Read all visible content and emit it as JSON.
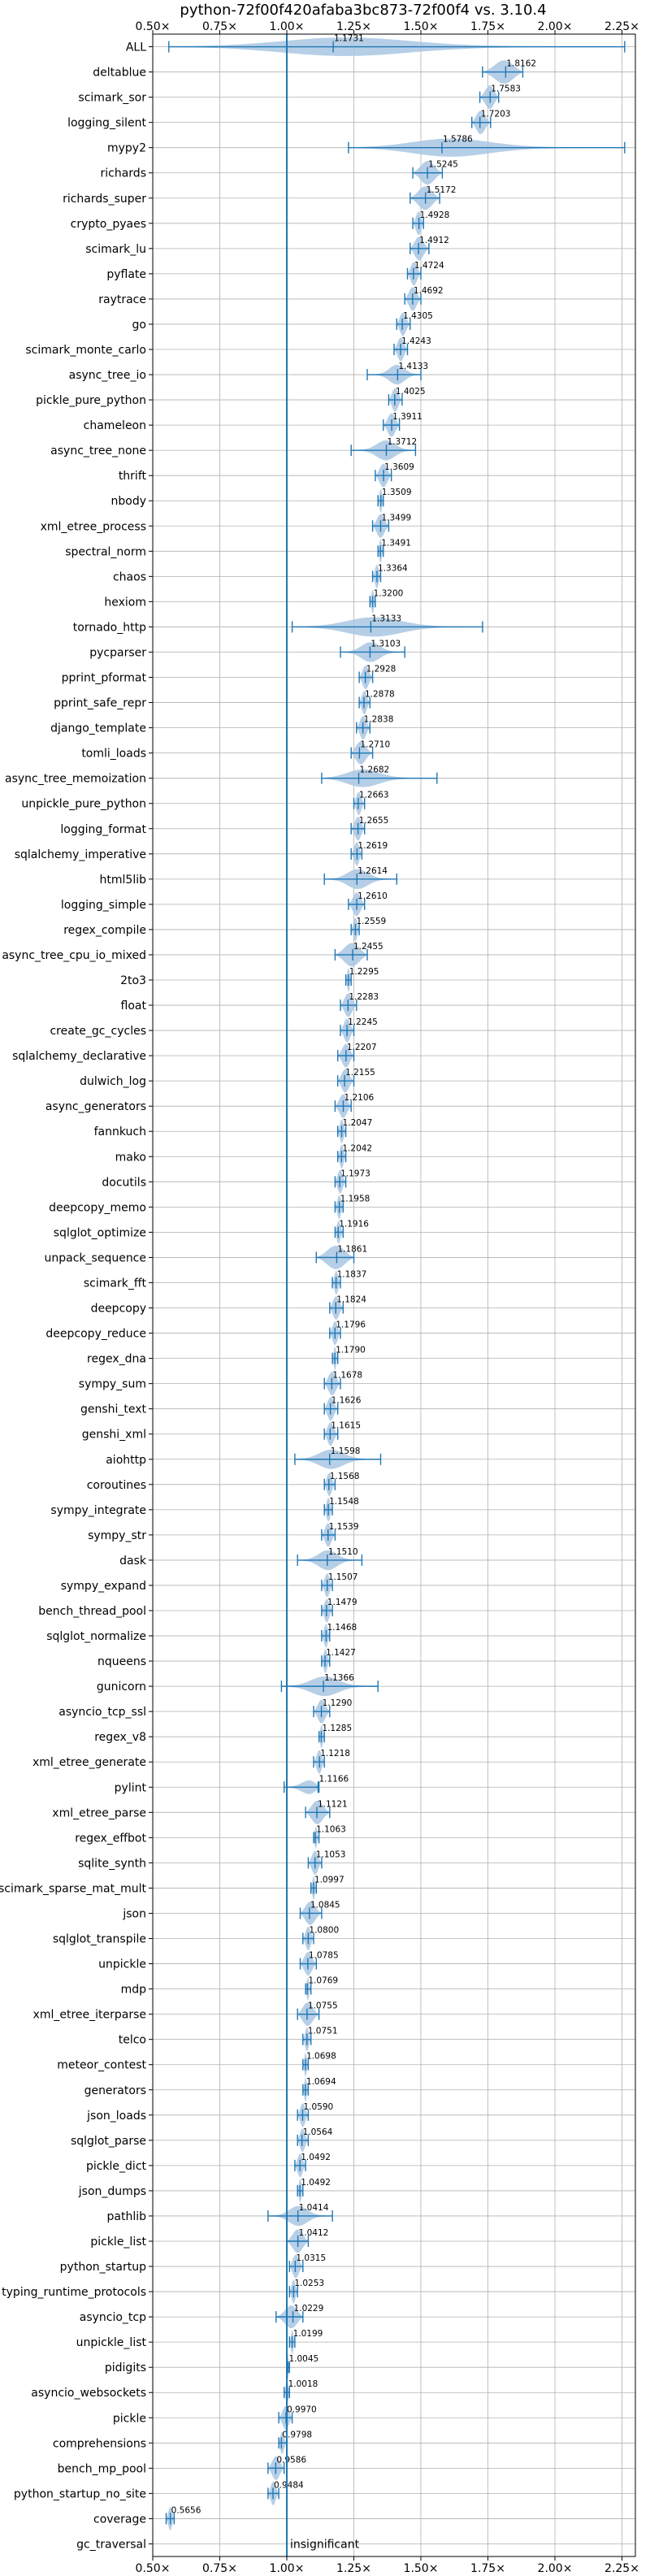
{
  "chart_data": {
    "type": "violin",
    "title": "python-72f00f420afaba3bc873-72f00f4 vs. 3.10.4",
    "xlabel": "",
    "ylabel": "",
    "xlim": [
      0.5,
      2.3
    ],
    "x_ticks": [
      0.5,
      0.75,
      1.0,
      1.25,
      1.5,
      1.75,
      2.0,
      2.25
    ],
    "x_tick_labels": [
      "0.50×",
      "0.75×",
      "1.00×",
      "1.25×",
      "1.50×",
      "1.75×",
      "2.00×",
      "2.25×"
    ],
    "grid": true,
    "reference_line": 1.0,
    "colors": {
      "violin": "#a9c7e3",
      "line": "#1f77b4",
      "grid": "#b0b0b0"
    },
    "benchmarks": [
      {
        "name": "ALL",
        "median": 1.1731,
        "min": 0.56,
        "max": 2.26
      },
      {
        "name": "deltablue",
        "median": 1.8162,
        "min": 1.73,
        "max": 1.88
      },
      {
        "name": "scimark_sor",
        "median": 1.7583,
        "min": 1.72,
        "max": 1.79
      },
      {
        "name": "logging_silent",
        "median": 1.7203,
        "min": 1.69,
        "max": 1.76
      },
      {
        "name": "mypy2",
        "median": 1.5786,
        "min": 1.23,
        "max": 2.26
      },
      {
        "name": "richards",
        "median": 1.5245,
        "min": 1.47,
        "max": 1.58
      },
      {
        "name": "richards_super",
        "median": 1.5172,
        "min": 1.46,
        "max": 1.57
      },
      {
        "name": "crypto_pyaes",
        "median": 1.4928,
        "min": 1.47,
        "max": 1.51
      },
      {
        "name": "scimark_lu",
        "median": 1.4912,
        "min": 1.46,
        "max": 1.53
      },
      {
        "name": "pyflate",
        "median": 1.4724,
        "min": 1.45,
        "max": 1.5
      },
      {
        "name": "raytrace",
        "median": 1.4692,
        "min": 1.44,
        "max": 1.5
      },
      {
        "name": "go",
        "median": 1.4305,
        "min": 1.41,
        "max": 1.46
      },
      {
        "name": "scimark_monte_carlo",
        "median": 1.4243,
        "min": 1.4,
        "max": 1.45
      },
      {
        "name": "async_tree_io",
        "median": 1.4133,
        "min": 1.3,
        "max": 1.5
      },
      {
        "name": "pickle_pure_python",
        "median": 1.4025,
        "min": 1.38,
        "max": 1.43
      },
      {
        "name": "chameleon",
        "median": 1.3911,
        "min": 1.36,
        "max": 1.42
      },
      {
        "name": "async_tree_none",
        "median": 1.3712,
        "min": 1.24,
        "max": 1.48
      },
      {
        "name": "thrift",
        "median": 1.3609,
        "min": 1.33,
        "max": 1.39
      },
      {
        "name": "nbody",
        "median": 1.3509,
        "min": 1.34,
        "max": 1.36
      },
      {
        "name": "xml_etree_process",
        "median": 1.3499,
        "min": 1.32,
        "max": 1.38
      },
      {
        "name": "spectral_norm",
        "median": 1.3491,
        "min": 1.34,
        "max": 1.36
      },
      {
        "name": "chaos",
        "median": 1.3364,
        "min": 1.32,
        "max": 1.35
      },
      {
        "name": "hexiom",
        "median": 1.32,
        "min": 1.31,
        "max": 1.33
      },
      {
        "name": "tornado_http",
        "median": 1.3133,
        "min": 1.02,
        "max": 1.73
      },
      {
        "name": "pycparser",
        "median": 1.3103,
        "min": 1.2,
        "max": 1.44
      },
      {
        "name": "pprint_pformat",
        "median": 1.2928,
        "min": 1.27,
        "max": 1.32
      },
      {
        "name": "pprint_safe_repr",
        "median": 1.2878,
        "min": 1.27,
        "max": 1.31
      },
      {
        "name": "django_template",
        "median": 1.2838,
        "min": 1.26,
        "max": 1.31
      },
      {
        "name": "tomli_loads",
        "median": 1.271,
        "min": 1.24,
        "max": 1.32
      },
      {
        "name": "async_tree_memoization",
        "median": 1.2682,
        "min": 1.13,
        "max": 1.56
      },
      {
        "name": "unpickle_pure_python",
        "median": 1.2663,
        "min": 1.25,
        "max": 1.29
      },
      {
        "name": "logging_format",
        "median": 1.2655,
        "min": 1.24,
        "max": 1.29
      },
      {
        "name": "sqlalchemy_imperative",
        "median": 1.2619,
        "min": 1.24,
        "max": 1.28
      },
      {
        "name": "html5lib",
        "median": 1.2614,
        "min": 1.14,
        "max": 1.41
      },
      {
        "name": "logging_simple",
        "median": 1.261,
        "min": 1.23,
        "max": 1.29
      },
      {
        "name": "regex_compile",
        "median": 1.2559,
        "min": 1.24,
        "max": 1.27
      },
      {
        "name": "async_tree_cpu_io_mixed",
        "median": 1.2455,
        "min": 1.18,
        "max": 1.3
      },
      {
        "name": "2to3",
        "median": 1.2295,
        "min": 1.22,
        "max": 1.24
      },
      {
        "name": "float",
        "median": 1.2283,
        "min": 1.2,
        "max": 1.26
      },
      {
        "name": "create_gc_cycles",
        "median": 1.2245,
        "min": 1.2,
        "max": 1.25
      },
      {
        "name": "sqlalchemy_declarative",
        "median": 1.2207,
        "min": 1.19,
        "max": 1.25
      },
      {
        "name": "dulwich_log",
        "median": 1.2155,
        "min": 1.19,
        "max": 1.25
      },
      {
        "name": "async_generators",
        "median": 1.2106,
        "min": 1.18,
        "max": 1.24
      },
      {
        "name": "fannkuch",
        "median": 1.2047,
        "min": 1.19,
        "max": 1.22
      },
      {
        "name": "mako",
        "median": 1.2042,
        "min": 1.19,
        "max": 1.22
      },
      {
        "name": "docutils",
        "median": 1.1973,
        "min": 1.18,
        "max": 1.22
      },
      {
        "name": "deepcopy_memo",
        "median": 1.1958,
        "min": 1.18,
        "max": 1.21
      },
      {
        "name": "sqlglot_optimize",
        "median": 1.1916,
        "min": 1.18,
        "max": 1.21
      },
      {
        "name": "unpack_sequence",
        "median": 1.1861,
        "min": 1.11,
        "max": 1.25
      },
      {
        "name": "scimark_fft",
        "median": 1.1837,
        "min": 1.17,
        "max": 1.2
      },
      {
        "name": "deepcopy",
        "median": 1.1824,
        "min": 1.16,
        "max": 1.21
      },
      {
        "name": "deepcopy_reduce",
        "median": 1.1796,
        "min": 1.16,
        "max": 1.2
      },
      {
        "name": "regex_dna",
        "median": 1.179,
        "min": 1.17,
        "max": 1.19
      },
      {
        "name": "sympy_sum",
        "median": 1.1678,
        "min": 1.14,
        "max": 1.2
      },
      {
        "name": "genshi_text",
        "median": 1.1626,
        "min": 1.14,
        "max": 1.19
      },
      {
        "name": "genshi_xml",
        "median": 1.1615,
        "min": 1.14,
        "max": 1.19
      },
      {
        "name": "aiohttp",
        "median": 1.1598,
        "min": 1.03,
        "max": 1.35
      },
      {
        "name": "coroutines",
        "median": 1.1568,
        "min": 1.14,
        "max": 1.18
      },
      {
        "name": "sympy_integrate",
        "median": 1.1548,
        "min": 1.14,
        "max": 1.17
      },
      {
        "name": "sympy_str",
        "median": 1.1539,
        "min": 1.13,
        "max": 1.18
      },
      {
        "name": "dask",
        "median": 1.151,
        "min": 1.04,
        "max": 1.28
      },
      {
        "name": "sympy_expand",
        "median": 1.1507,
        "min": 1.13,
        "max": 1.17
      },
      {
        "name": "bench_thread_pool",
        "median": 1.1479,
        "min": 1.13,
        "max": 1.17
      },
      {
        "name": "sqlglot_normalize",
        "median": 1.1468,
        "min": 1.13,
        "max": 1.16
      },
      {
        "name": "nqueens",
        "median": 1.1427,
        "min": 1.13,
        "max": 1.16
      },
      {
        "name": "gunicorn",
        "median": 1.1366,
        "min": 0.98,
        "max": 1.34
      },
      {
        "name": "asyncio_tcp_ssl",
        "median": 1.129,
        "min": 1.1,
        "max": 1.16
      },
      {
        "name": "regex_v8",
        "median": 1.1285,
        "min": 1.12,
        "max": 1.14
      },
      {
        "name": "xml_etree_generate",
        "median": 1.1218,
        "min": 1.1,
        "max": 1.14
      },
      {
        "name": "pylint",
        "median": 1.1166,
        "min": 0.99,
        "max": 1.12
      },
      {
        "name": "xml_etree_parse",
        "median": 1.1121,
        "min": 1.07,
        "max": 1.16
      },
      {
        "name": "regex_effbot",
        "median": 1.1063,
        "min": 1.1,
        "max": 1.12
      },
      {
        "name": "sqlite_synth",
        "median": 1.1053,
        "min": 1.08,
        "max": 1.13
      },
      {
        "name": "scimark_sparse_mat_mult",
        "median": 1.0997,
        "min": 1.09,
        "max": 1.11
      },
      {
        "name": "json",
        "median": 1.0845,
        "min": 1.05,
        "max": 1.13
      },
      {
        "name": "sqlglot_transpile",
        "median": 1.08,
        "min": 1.06,
        "max": 1.1
      },
      {
        "name": "unpickle",
        "median": 1.0785,
        "min": 1.05,
        "max": 1.11
      },
      {
        "name": "mdp",
        "median": 1.0769,
        "min": 1.07,
        "max": 1.09
      },
      {
        "name": "xml_etree_iterparse",
        "median": 1.0755,
        "min": 1.04,
        "max": 1.12
      },
      {
        "name": "telco",
        "median": 1.0751,
        "min": 1.06,
        "max": 1.09
      },
      {
        "name": "meteor_contest",
        "median": 1.0698,
        "min": 1.06,
        "max": 1.08
      },
      {
        "name": "generators",
        "median": 1.0694,
        "min": 1.06,
        "max": 1.08
      },
      {
        "name": "json_loads",
        "median": 1.059,
        "min": 1.04,
        "max": 1.08
      },
      {
        "name": "sqlglot_parse",
        "median": 1.0564,
        "min": 1.04,
        "max": 1.08
      },
      {
        "name": "pickle_dict",
        "median": 1.0492,
        "min": 1.03,
        "max": 1.07
      },
      {
        "name": "json_dumps",
        "median": 1.0492,
        "min": 1.04,
        "max": 1.06
      },
      {
        "name": "pathlib",
        "median": 1.0414,
        "min": 0.93,
        "max": 1.17
      },
      {
        "name": "pickle_list",
        "median": 1.0412,
        "min": 1.0,
        "max": 1.08
      },
      {
        "name": "python_startup",
        "median": 1.0315,
        "min": 1.01,
        "max": 1.06
      },
      {
        "name": "typing_runtime_protocols",
        "median": 1.0253,
        "min": 1.01,
        "max": 1.04
      },
      {
        "name": "asyncio_tcp",
        "median": 1.0229,
        "min": 0.96,
        "max": 1.06
      },
      {
        "name": "unpickle_list",
        "median": 1.0199,
        "min": 1.01,
        "max": 1.03
      },
      {
        "name": "pidigits",
        "median": 1.0045,
        "min": 1.0,
        "max": 1.01
      },
      {
        "name": "asyncio_websockets",
        "median": 1.0018,
        "min": 0.99,
        "max": 1.01
      },
      {
        "name": "pickle",
        "median": 0.997,
        "min": 0.97,
        "max": 1.02
      },
      {
        "name": "comprehensions",
        "median": 0.9798,
        "min": 0.97,
        "max": 1.0
      },
      {
        "name": "bench_mp_pool",
        "median": 0.9586,
        "min": 0.93,
        "max": 0.99
      },
      {
        "name": "python_startup_no_site",
        "median": 0.9484,
        "min": 0.93,
        "max": 0.97
      },
      {
        "name": "coverage",
        "median": 0.5656,
        "min": 0.55,
        "max": 0.58
      },
      {
        "name": "gc_traversal",
        "median": null,
        "min": null,
        "max": null,
        "note": "insignificant"
      }
    ]
  }
}
